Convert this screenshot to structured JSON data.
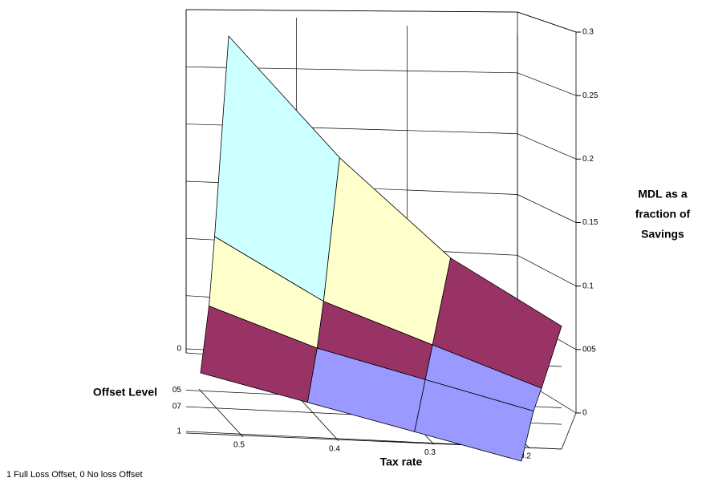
{
  "chart_data": {
    "type": "surface",
    "x_label": "Tax rate",
    "y_label": "Offset Level",
    "z_label": [
      "MDL as a",
      "fraction of",
      "Savings"
    ],
    "note": "1 Full Loss Offset, 0 No loss Offset",
    "x": [
      0.5,
      0.4,
      0.3,
      0.2
    ],
    "xlim": [
      0.5,
      0.2
    ],
    "xticks": [
      0.5,
      0.4,
      0.3,
      0.2
    ],
    "y": [
      0,
      0.5,
      0.7,
      1
    ],
    "ylim": [
      0,
      1
    ],
    "yticks": [
      0,
      {
        "value": 0.5,
        "label": "05"
      },
      {
        "value": 0.7,
        "label": "07"
      },
      1
    ],
    "z": [
      [
        0.3,
        0.2,
        0.12,
        0.07
      ],
      [
        0.15,
        0.1,
        0.07,
        0.04
      ],
      [
        0.1,
        0.07,
        0.05,
        0.03
      ],
      [
        0.06,
        0.04,
        0.02,
        0.0
      ]
    ],
    "zlim": [
      0,
      0.3
    ],
    "zticks": [
      0,
      {
        "value": 0.05,
        "label": "005"
      },
      0.1,
      0.15,
      0.2,
      0.25,
      0.3
    ],
    "band_colors": [
      "#9999ff",
      "#993366",
      "#ffffcc",
      "#ccffff",
      "#660066",
      "#ff8080"
    ]
  }
}
